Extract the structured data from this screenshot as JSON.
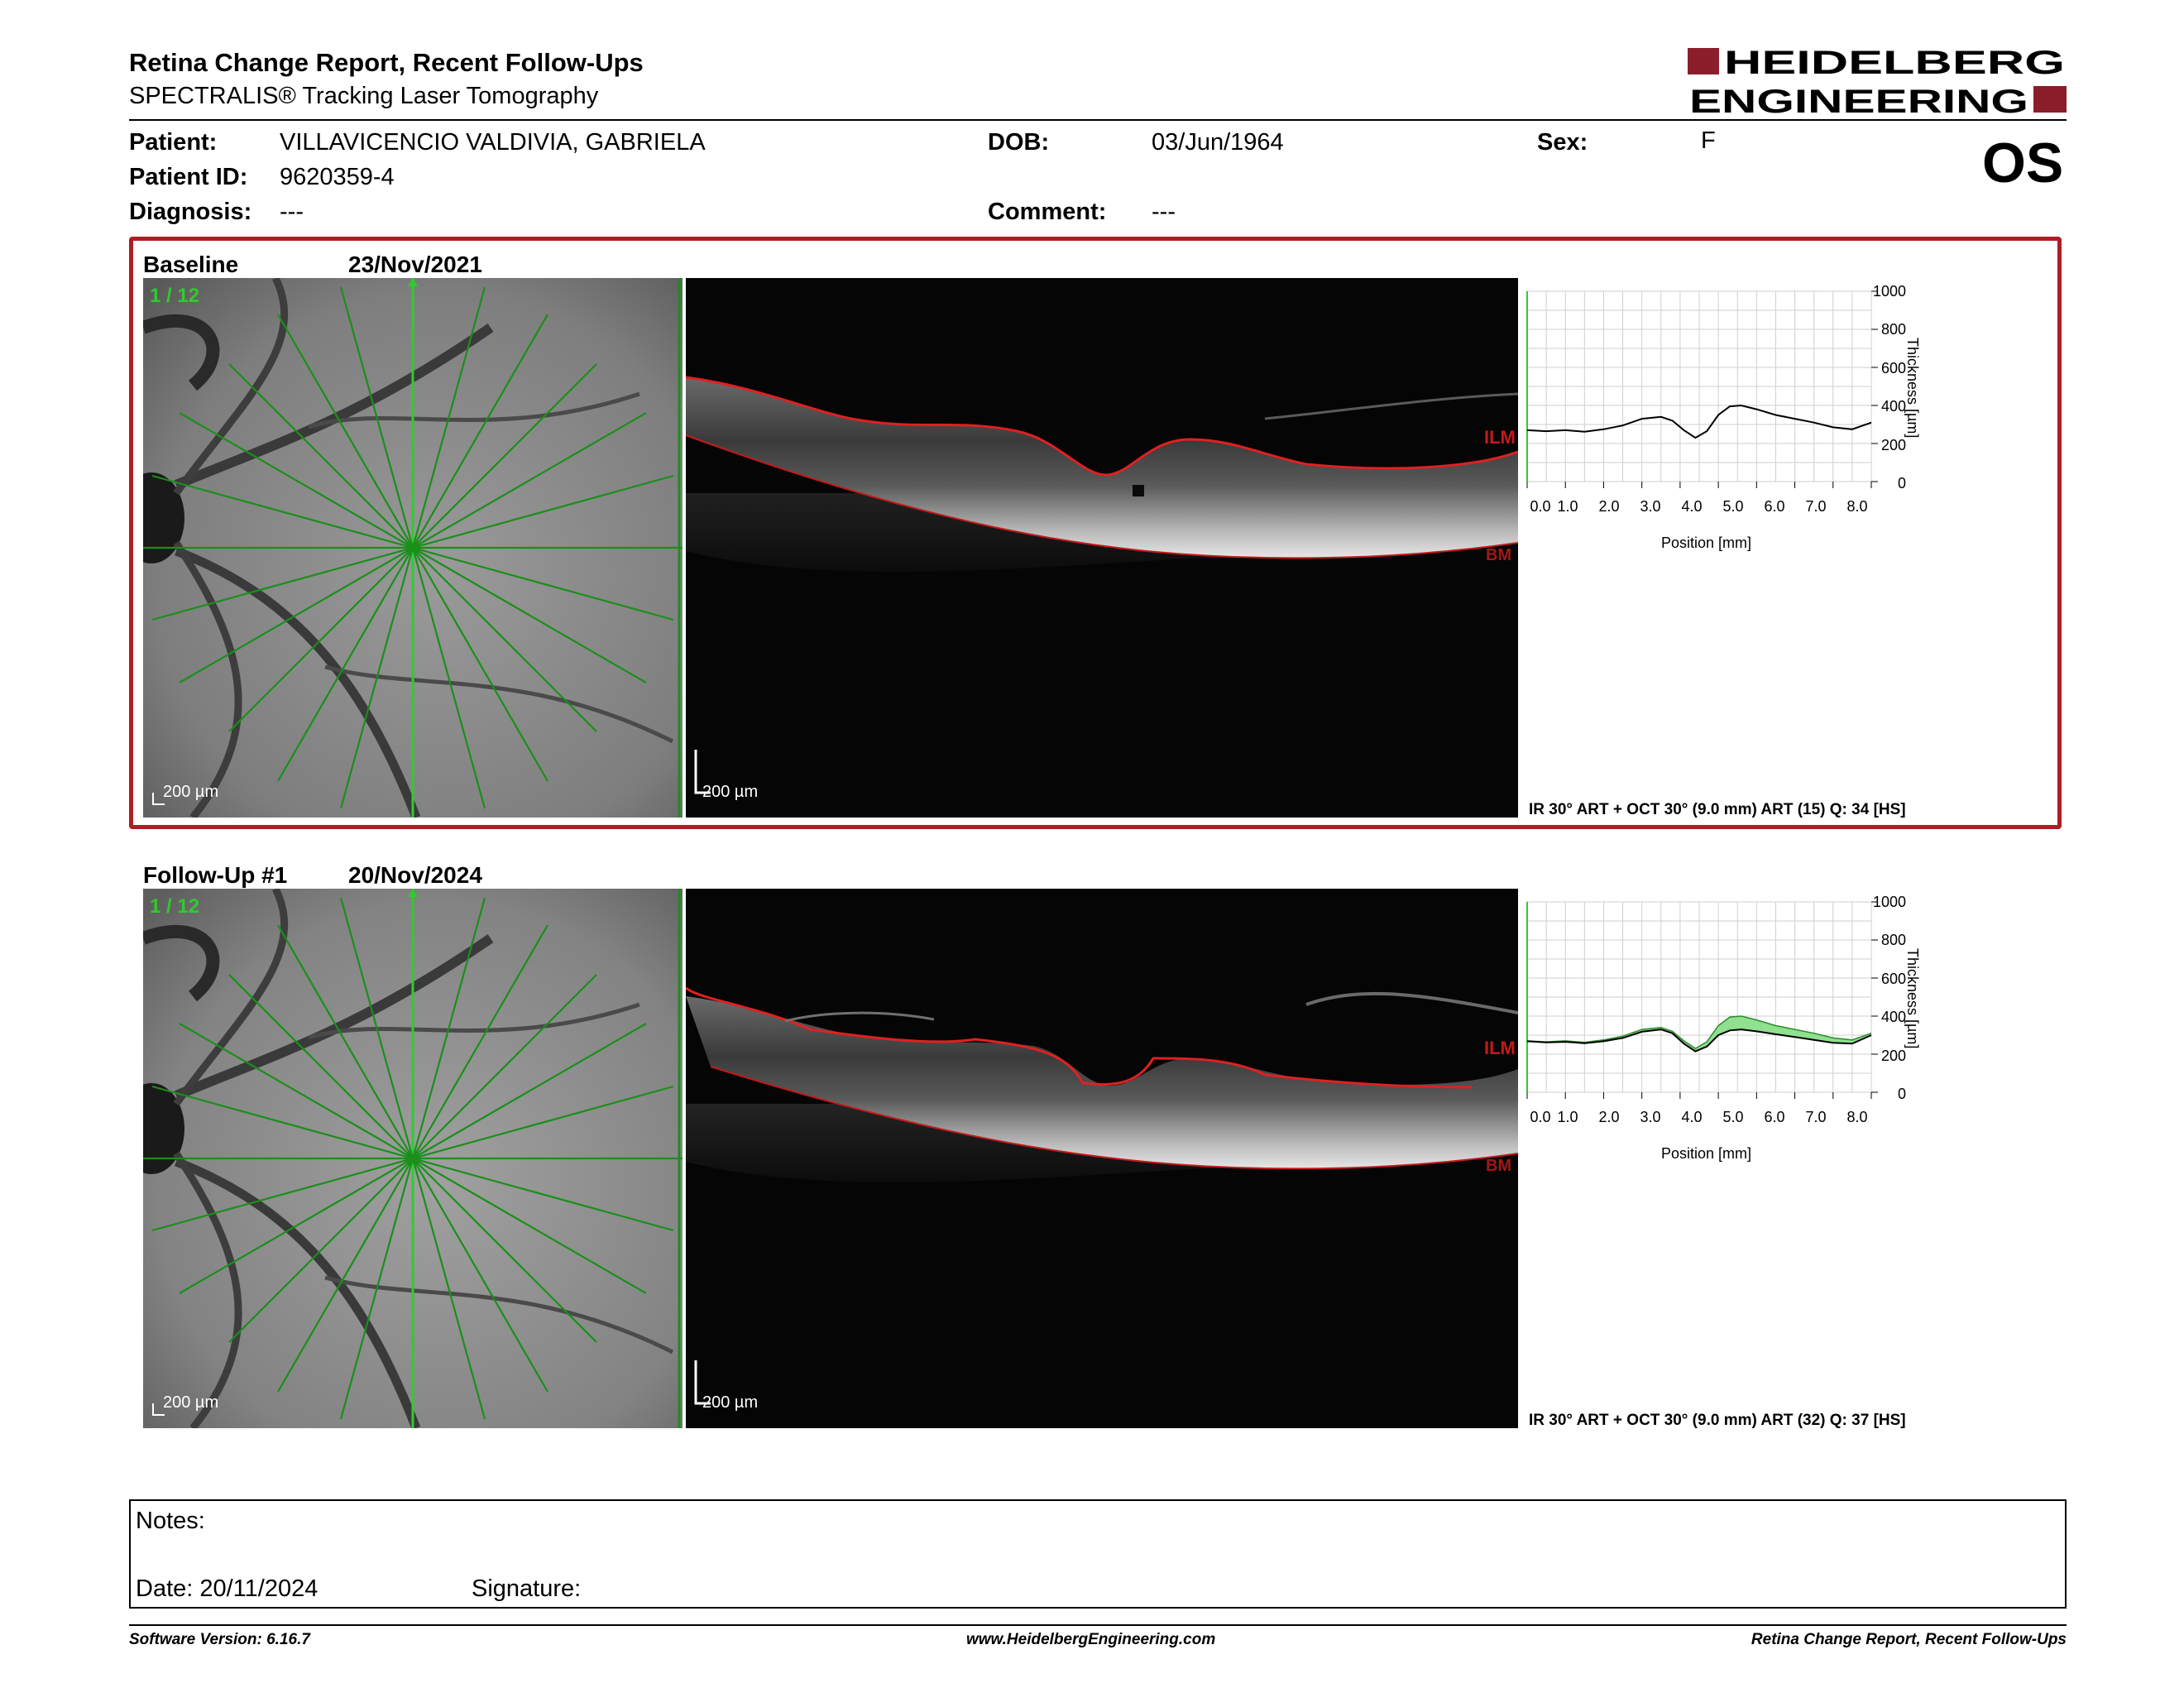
{
  "header": {
    "title": "Retina Change Report, Recent Follow-Ups",
    "subtitle": "SPECTRALIS® Tracking Laser Tomography",
    "eye": "OS"
  },
  "logo": {
    "line1": "HEIDELBERG",
    "line2": "ENGINEERING",
    "brand_color": "#8b1e2b"
  },
  "patient": {
    "patient_label": "Patient:",
    "patient_value": "VILLAVICENCIO VALDIVIA, GABRIELA",
    "id_label": "Patient ID:",
    "id_value": "9620359-4",
    "diagnosis_label": "Diagnosis:",
    "diagnosis_value": "---",
    "dob_label": "DOB:",
    "dob_value": "03/Jun/1964",
    "comment_label": "Comment:",
    "comment_value": "---",
    "sex_label": "Sex:",
    "sex_value": "F"
  },
  "exams": [
    {
      "label": "Baseline",
      "date": "23/Nov/2021",
      "scan_index": "1 / 12",
      "fundus_scale": "200 µm",
      "bscan_scale": "200 µm",
      "ilm": "ILM",
      "bm": "BM",
      "info": "IR 30° ART + OCT 30° (9.0 mm) ART (15) Q: 34 [HS]",
      "highlight_color": "#b01c24"
    },
    {
      "label": "Follow-Up #1",
      "date": "20/Nov/2024",
      "scan_index": "1 / 12",
      "fundus_scale": "200 µm",
      "bscan_scale": "200 µm",
      "ilm": "ILM",
      "bm": "BM",
      "info": "IR 30° ART + OCT 30° (9.0 mm) ART (32) Q: 37 [HS]"
    }
  ],
  "plot_axes": {
    "ylabel": "Thickness [µm]",
    "xlabel": "Position [mm]",
    "yticks": [
      "1000",
      "800",
      "600",
      "400",
      "200",
      "0"
    ],
    "xticks": [
      "0.0",
      "1.0",
      "2.0",
      "3.0",
      "4.0",
      "5.0",
      "6.0",
      "7.0",
      "8.0"
    ]
  },
  "chart_data": [
    {
      "type": "line",
      "xlabel": "Position [mm]",
      "ylabel": "Thickness [µm]",
      "xlim": [
        0,
        9
      ],
      "ylim": [
        0,
        1000
      ],
      "x": [
        0.0,
        0.5,
        1.0,
        1.5,
        2.0,
        2.5,
        3.0,
        3.5,
        3.8,
        4.1,
        4.4,
        4.7,
        5.0,
        5.3,
        5.6,
        6.0,
        6.5,
        7.0,
        7.5,
        8.0,
        8.5,
        9.0
      ],
      "series": [
        {
          "values": [
            270,
            265,
            270,
            262,
            275,
            295,
            330,
            340,
            320,
            270,
            230,
            265,
            350,
            395,
            400,
            380,
            350,
            330,
            310,
            285,
            275,
            310
          ],
          "color": "#000000"
        }
      ]
    },
    {
      "type": "area",
      "xlabel": "Position [mm]",
      "ylabel": "Thickness [µm]",
      "xlim": [
        0,
        9
      ],
      "ylim": [
        0,
        1000
      ],
      "x": [
        0.0,
        0.5,
        1.0,
        1.5,
        2.0,
        2.5,
        3.0,
        3.5,
        3.8,
        4.1,
        4.4,
        4.7,
        5.0,
        5.3,
        5.6,
        6.0,
        6.5,
        7.0,
        7.5,
        8.0,
        8.5,
        9.0
      ],
      "series": [
        {
          "values": [
            270,
            265,
            270,
            262,
            275,
            295,
            330,
            340,
            320,
            270,
            230,
            265,
            350,
            395,
            400,
            380,
            350,
            330,
            310,
            285,
            275,
            310
          ],
          "color": "#2e8b2e"
        },
        {
          "values": [
            268,
            262,
            265,
            258,
            268,
            285,
            318,
            330,
            310,
            255,
            215,
            240,
            300,
            325,
            330,
            320,
            305,
            290,
            275,
            260,
            255,
            300
          ],
          "color": "#000000"
        }
      ],
      "fill_color": "#8fe08f"
    }
  ],
  "notes": {
    "notes_label": "Notes:",
    "date_label": "Date: 20/11/2024",
    "signature_label": "Signature:"
  },
  "footer": {
    "left": "Software Version: 6.16.7",
    "center": "www.HeidelbergEngineering.com",
    "right": "Retina Change Report, Recent Follow-Ups"
  }
}
